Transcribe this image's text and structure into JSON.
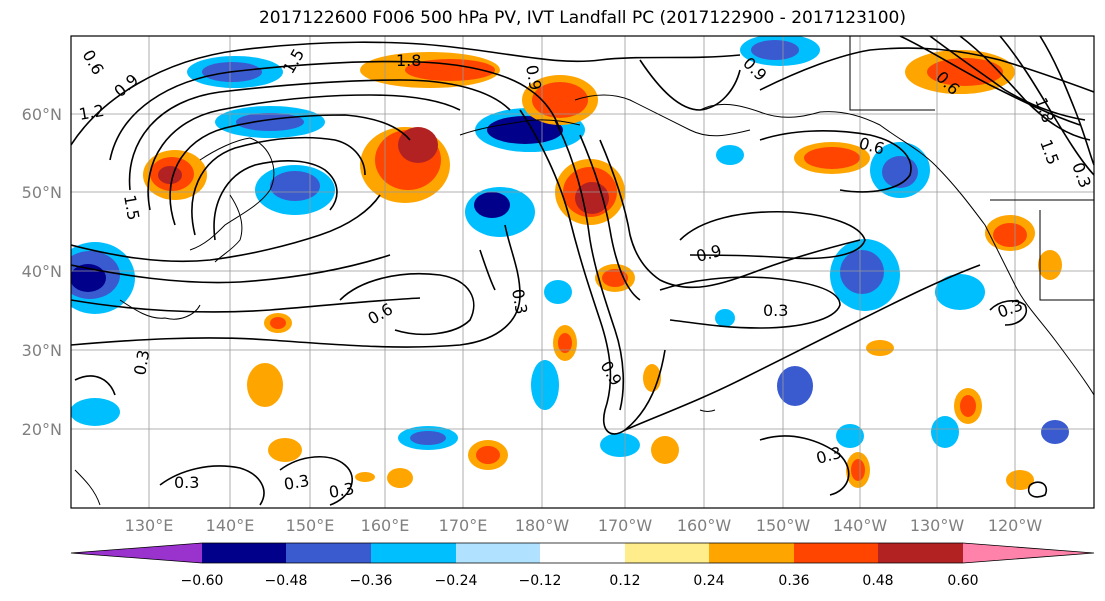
{
  "title": "2017122600 F006 500 hPa PV, IVT Landfall PC (2017122900 - 2017123100)",
  "lat_labels": [
    "60°N",
    "50°N",
    "40°N",
    "30°N",
    "20°N"
  ],
  "lon_labels": [
    "130°E",
    "140°E",
    "150°E",
    "160°E",
    "170°E",
    "180°W",
    "170°W",
    "160°W",
    "150°W",
    "140°W",
    "130°W",
    "120°W"
  ],
  "contour_labels": [
    "0.6",
    "0.9",
    "1.2",
    "1.5",
    "1.8",
    "1.5",
    "0.9",
    "0.3",
    "0.6",
    "0.9",
    "0.3",
    "0.9",
    "0.6",
    "0.3",
    "0.3",
    "0.3",
    "0.3",
    "0.3",
    "0.3",
    "1.8",
    "1.5",
    "0.6",
    "0.9",
    "0.3"
  ],
  "colorbar": {
    "tick_labels": [
      "−0.60",
      "−0.48",
      "−0.36",
      "−0.24",
      "−0.12",
      "0.12",
      "0.24",
      "0.36",
      "0.48",
      "0.60"
    ],
    "colors": [
      "#9a32cd",
      "#00008b",
      "#3a5bd0",
      "#00bfff",
      "#b0e2ff",
      "#ffffff",
      "#ffec8b",
      "#ffa500",
      "#ff4500",
      "#b22222",
      "#ff82ab"
    ]
  },
  "colors": {
    "contour": "#000000",
    "gridline": "#999999",
    "axis_label": "#808080",
    "frame": "#000000"
  }
}
